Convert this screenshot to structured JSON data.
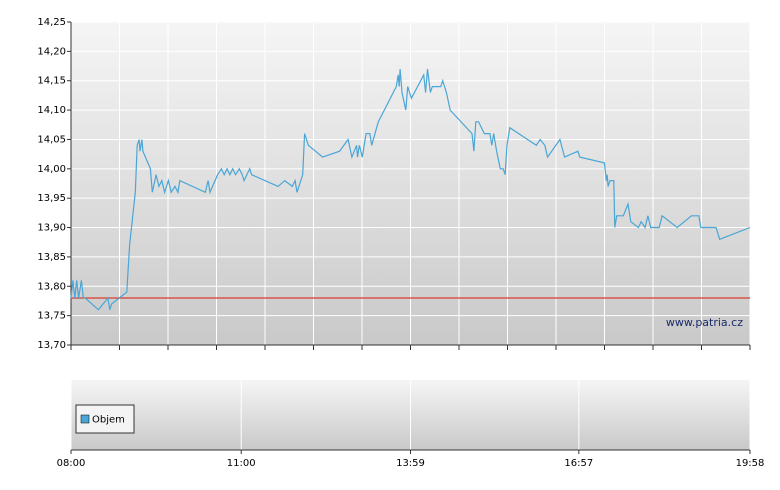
{
  "chart_data": {
    "type": "line",
    "x": [
      "08:00",
      "08:02",
      "08:04",
      "08:06",
      "08:08",
      "08:11",
      "08:13",
      "08:15",
      "08:29",
      "08:39",
      "08:41",
      "08:43",
      "08:59",
      "09:02",
      "09:08",
      "09:10",
      "09:12",
      "09:13",
      "09:15",
      "09:16",
      "09:24",
      "09:26",
      "09:30",
      "09:33",
      "09:36",
      "09:39",
      "09:43",
      "09:46",
      "09:50",
      "09:53",
      "09:55",
      "10:22",
      "10:25",
      "10:27",
      "10:35",
      "10:39",
      "10:42",
      "10:45",
      "10:48",
      "10:51",
      "10:54",
      "10:58",
      "11:01",
      "11:03",
      "11:09",
      "11:11",
      "11:25",
      "11:39",
      "11:46",
      "11:54",
      "11:57",
      "11:59",
      "12:05",
      "12:07",
      "12:11",
      "12:26",
      "12:44",
      "12:53",
      "12:57",
      "13:02",
      "13:03",
      "13:05",
      "13:08",
      "13:12",
      "13:16",
      "13:18",
      "13:25",
      "13:44",
      "13:46",
      "13:47",
      "13:48",
      "13:50",
      "13:54",
      "13:56",
      "14:00",
      "14:13",
      "14:15",
      "14:17",
      "14:20",
      "14:22",
      "14:31",
      "14:33",
      "14:37",
      "14:41",
      "15:04",
      "15:06",
      "15:08",
      "15:11",
      "15:17",
      "15:23",
      "15:25",
      "15:27",
      "15:30",
      "15:34",
      "15:37",
      "15:39",
      "15:41",
      "15:44",
      "16:12",
      "16:16",
      "16:21",
      "16:24",
      "16:37",
      "16:42",
      "16:56",
      "16:58",
      "17:24",
      "17:26",
      "17:27",
      "17:28",
      "17:30",
      "17:34",
      "17:35",
      "17:37",
      "17:44",
      "17:49",
      "17:52",
      "18:00",
      "18:03",
      "18:07",
      "18:10",
      "18:13",
      "18:22",
      "18:25",
      "18:41",
      "18:56",
      "19:04",
      "19:06",
      "19:22",
      "19:26",
      "19:58"
    ],
    "series": [
      {
        "color": "#4aa6d6",
        "values": [
          13.78,
          13.81,
          13.78,
          13.81,
          13.78,
          13.81,
          13.78,
          13.78,
          13.76,
          13.78,
          13.76,
          13.77,
          13.79,
          13.87,
          13.96,
          14.04,
          14.05,
          14.03,
          14.05,
          14.03,
          14.0,
          13.96,
          13.99,
          13.97,
          13.98,
          13.96,
          13.98,
          13.96,
          13.97,
          13.96,
          13.98,
          13.96,
          13.98,
          13.96,
          13.99,
          14.0,
          13.99,
          14.0,
          13.99,
          14.0,
          13.99,
          14.0,
          13.99,
          13.98,
          14.0,
          13.99,
          13.98,
          13.97,
          13.98,
          13.97,
          13.98,
          13.96,
          13.99,
          14.06,
          14.04,
          14.02,
          14.03,
          14.05,
          14.02,
          14.04,
          14.02,
          14.04,
          14.02,
          14.06,
          14.06,
          14.04,
          14.08,
          14.14,
          14.16,
          14.14,
          14.17,
          14.13,
          14.1,
          14.14,
          14.12,
          14.16,
          14.13,
          14.17,
          14.13,
          14.14,
          14.14,
          14.15,
          14.13,
          14.1,
          14.06,
          14.03,
          14.08,
          14.08,
          14.06,
          14.06,
          14.04,
          14.06,
          14.03,
          14.0,
          14.0,
          13.99,
          14.04,
          14.07,
          14.04,
          14.05,
          14.04,
          14.02,
          14.05,
          14.02,
          14.03,
          14.02,
          14.01,
          13.98,
          13.99,
          13.97,
          13.98,
          13.98,
          13.9,
          13.92,
          13.92,
          13.94,
          13.91,
          13.9,
          13.91,
          13.9,
          13.92,
          13.9,
          13.9,
          13.92,
          13.9,
          13.92,
          13.92,
          13.9,
          13.9,
          13.88,
          13.9
        ]
      }
    ],
    "reference": {
      "value": 13.78,
      "color": "#d9544a"
    },
    "ylim": [
      13.7,
      14.25
    ],
    "yticks": [
      {
        "value": 13.7,
        "label": "13,70"
      },
      {
        "value": 13.75,
        "label": "13,75"
      },
      {
        "value": 13.8,
        "label": "13,80"
      },
      {
        "value": 13.85,
        "label": "13,85"
      },
      {
        "value": 13.9,
        "label": "13,90"
      },
      {
        "value": 13.95,
        "label": "13,95"
      },
      {
        "value": 14.0,
        "label": "14,00"
      },
      {
        "value": 14.05,
        "label": "14,05"
      },
      {
        "value": 14.1,
        "label": "14,10"
      },
      {
        "value": 14.15,
        "label": "14,15"
      },
      {
        "value": 14.2,
        "label": "14,20"
      },
      {
        "value": 14.25,
        "label": "14,25"
      }
    ],
    "xlim": [
      "08:00",
      "19:58"
    ],
    "xticks": [
      "08:00",
      "11:00",
      "13:59",
      "16:57",
      "19:58"
    ],
    "legend_label": "Objem",
    "watermark": "www.patria.cz",
    "grid": true
  }
}
